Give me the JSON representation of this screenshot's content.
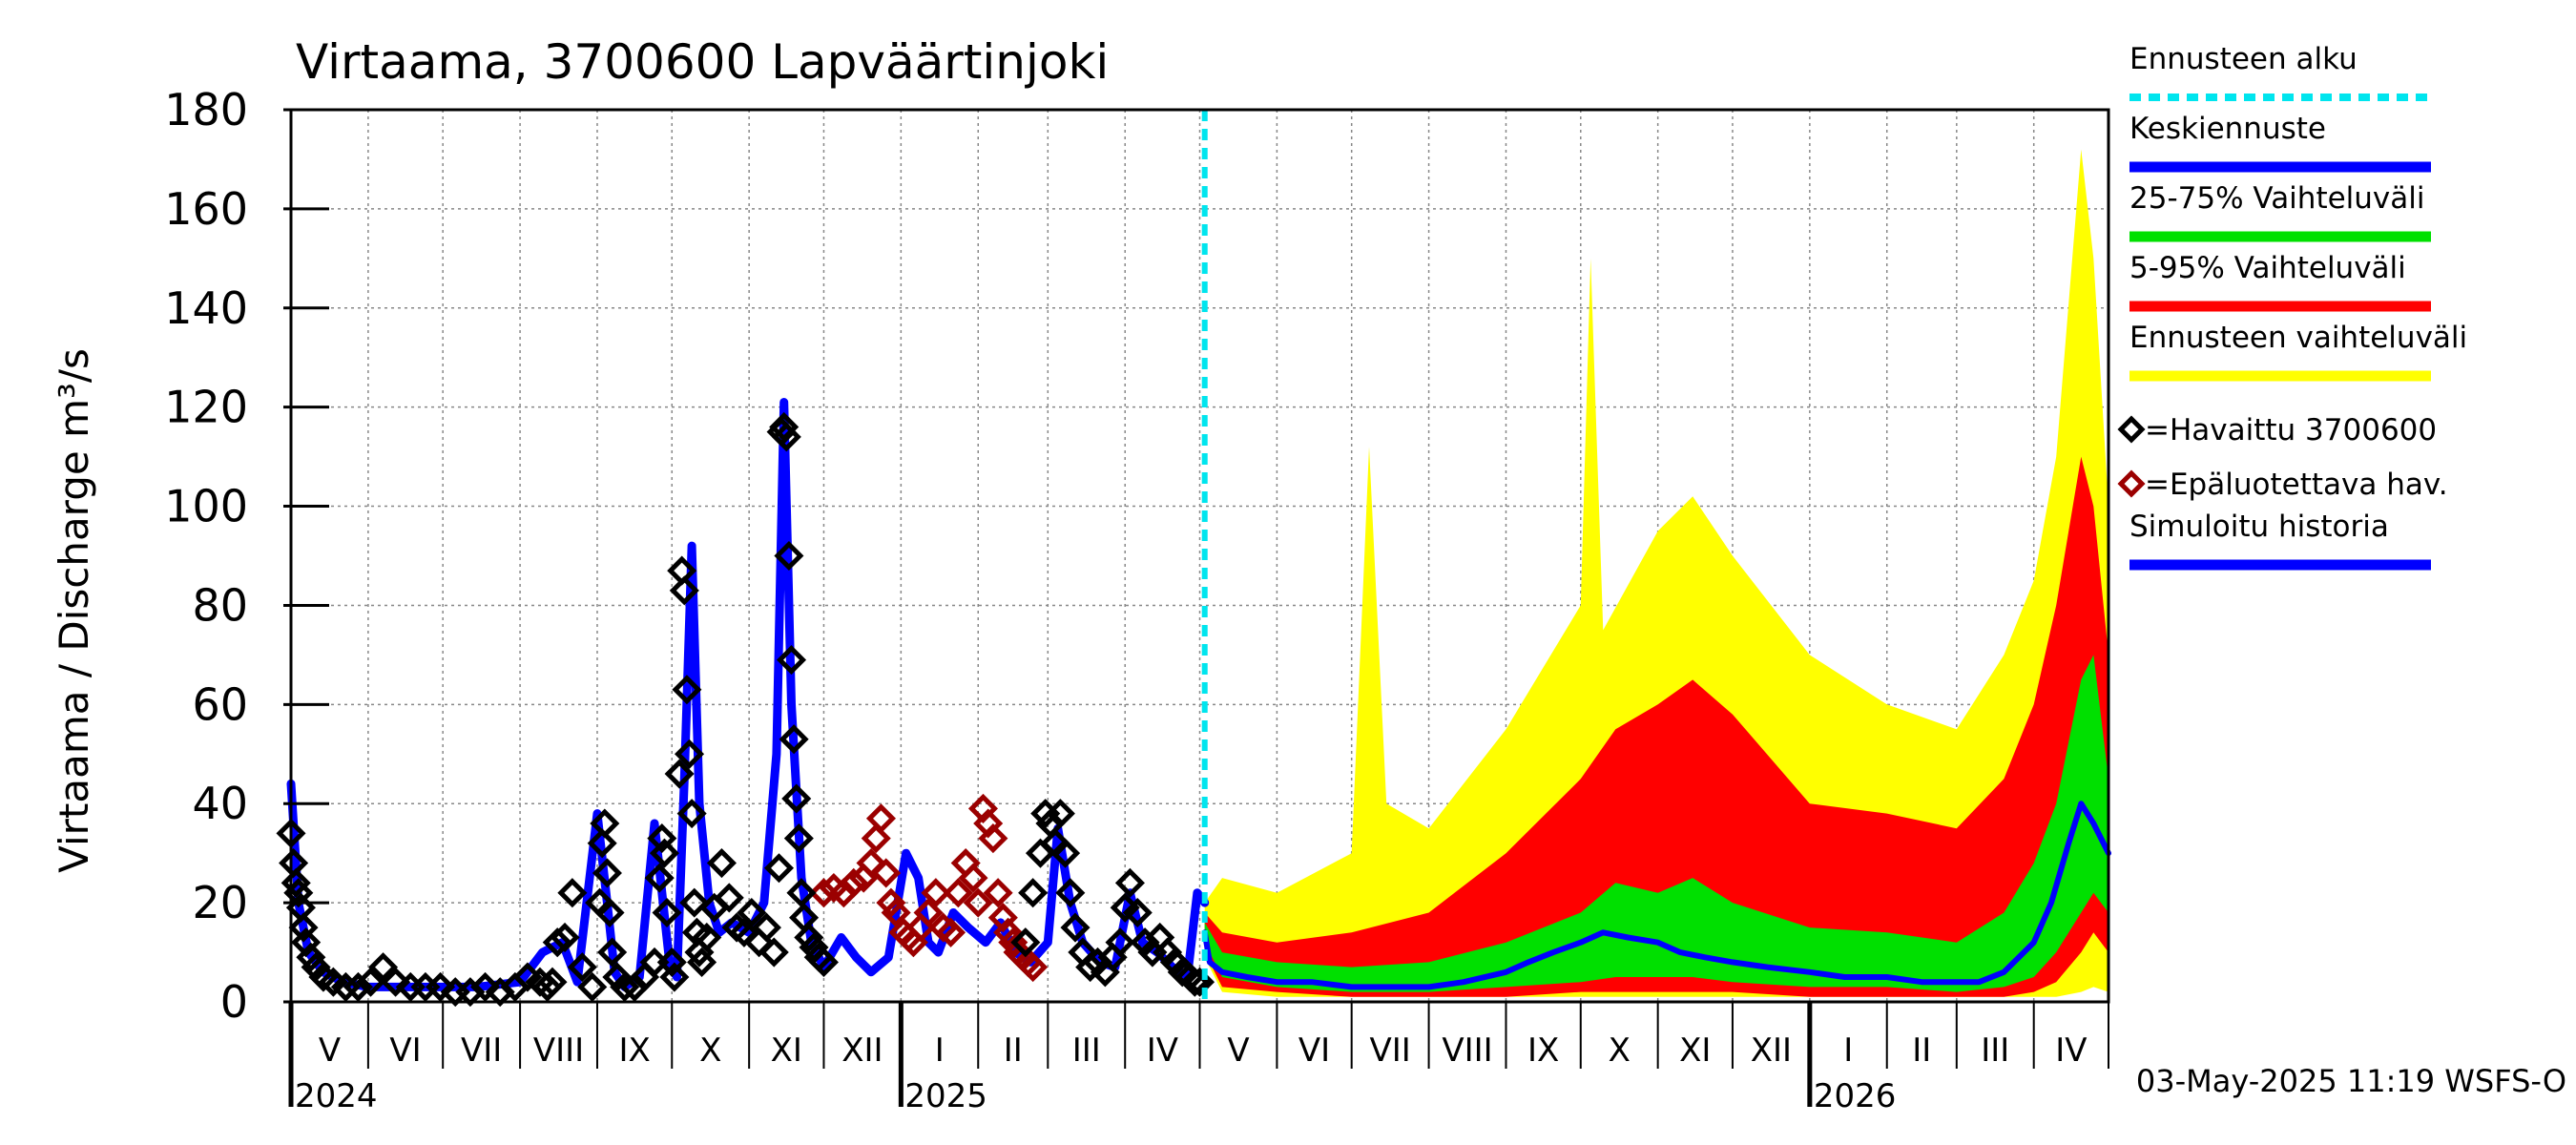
{
  "chart_data": {
    "type": "area",
    "title": "Virtaama, 3700600 Lapväärtinjoki",
    "ylabel": "Virtaama / Discharge    m³/s",
    "ylim": [
      0,
      180
    ],
    "yticks": [
      0,
      20,
      40,
      60,
      80,
      100,
      120,
      140,
      160,
      180
    ],
    "ytick_labels": [
      "0",
      "20",
      "40",
      "60",
      "80",
      "100",
      "120",
      "140",
      "160",
      "180"
    ],
    "xlim": [
      "2024-05-01",
      "2026-05-01"
    ],
    "month_ticks": [
      {
        "label": "V",
        "date": "2024-05-01"
      },
      {
        "label": "VI",
        "date": "2024-06-01"
      },
      {
        "label": "VII",
        "date": "2024-07-01"
      },
      {
        "label": "VIII",
        "date": "2024-08-01"
      },
      {
        "label": "IX",
        "date": "2024-09-01"
      },
      {
        "label": "X",
        "date": "2024-10-01"
      },
      {
        "label": "XI",
        "date": "2024-11-01"
      },
      {
        "label": "XII",
        "date": "2024-12-01"
      },
      {
        "label": "I",
        "date": "2025-01-01"
      },
      {
        "label": "II",
        "date": "2025-02-01"
      },
      {
        "label": "III",
        "date": "2025-03-01"
      },
      {
        "label": "IV",
        "date": "2025-04-01"
      },
      {
        "label": "V",
        "date": "2025-05-01"
      },
      {
        "label": "VI",
        "date": "2025-06-01"
      },
      {
        "label": "VII",
        "date": "2025-07-01"
      },
      {
        "label": "VIII",
        "date": "2025-08-01"
      },
      {
        "label": "IX",
        "date": "2025-09-01"
      },
      {
        "label": "X",
        "date": "2025-10-01"
      },
      {
        "label": "XI",
        "date": "2025-11-01"
      },
      {
        "label": "XII",
        "date": "2025-12-01"
      },
      {
        "label": "I",
        "date": "2026-01-01"
      },
      {
        "label": "II",
        "date": "2026-02-01"
      },
      {
        "label": "III",
        "date": "2026-03-01"
      },
      {
        "label": "IV",
        "date": "2026-04-01"
      },
      {
        "label": "",
        "date": "2026-05-01"
      }
    ],
    "year_labels": [
      {
        "label": "2024",
        "date": "2024-05-01"
      },
      {
        "label": "2025",
        "date": "2025-01-01"
      },
      {
        "label": "2026",
        "date": "2026-01-01"
      }
    ],
    "forecast_start": "2025-05-03",
    "timestamp": "03-May-2025 11:19 WSFS-O",
    "grid": true,
    "legend_position": "right",
    "legend": [
      {
        "label": "Ennusteen alku",
        "color": "#00e5ee",
        "style": "dashed"
      },
      {
        "label": "Keskiennuste",
        "color": "#0000ff",
        "style": "line"
      },
      {
        "label": "25-75% Vaihteluväli",
        "color": "#00e000",
        "style": "line"
      },
      {
        "label": "5-95% Vaihteluväli",
        "color": "#ff0000",
        "style": "line"
      },
      {
        "label": "Ennusteen vaihteluväli",
        "color": "#ffff00",
        "style": "line"
      },
      {
        "label": "=Havaittu 3700600",
        "color": "#000000",
        "style": "diamond"
      },
      {
        "label": "=Epäluotettava hav.",
        "color": "#9b0000",
        "style": "diamond"
      },
      {
        "label": "Simuloitu historia",
        "color": "#0000ff",
        "style": "line"
      }
    ],
    "series": [
      {
        "name": "Simuloitu historia",
        "color": "#0000ff",
        "x": [
          "2024-05-01",
          "2024-05-04",
          "2024-05-08",
          "2024-05-14",
          "2024-05-22",
          "2024-06-01",
          "2024-06-15",
          "2024-07-01",
          "2024-07-15",
          "2024-08-01",
          "2024-08-10",
          "2024-08-18",
          "2024-08-24",
          "2024-09-01",
          "2024-09-05",
          "2024-09-08",
          "2024-09-12",
          "2024-09-18",
          "2024-09-24",
          "2024-09-30",
          "2024-10-03",
          "2024-10-06",
          "2024-10-09",
          "2024-10-12",
          "2024-10-16",
          "2024-10-20",
          "2024-10-25",
          "2024-11-01",
          "2024-11-07",
          "2024-11-12",
          "2024-11-15",
          "2024-11-18",
          "2024-11-22",
          "2024-11-26",
          "2024-12-01",
          "2024-12-08",
          "2024-12-14",
          "2024-12-20",
          "2024-12-27",
          "2025-01-03",
          "2025-01-08",
          "2025-01-12",
          "2025-01-16",
          "2025-01-22",
          "2025-01-28",
          "2025-02-04",
          "2025-02-10",
          "2025-02-16",
          "2025-02-22",
          "2025-03-01",
          "2025-03-05",
          "2025-03-10",
          "2025-03-15",
          "2025-03-22",
          "2025-03-28",
          "2025-04-03",
          "2025-04-08",
          "2025-04-14",
          "2025-04-20",
          "2025-04-26",
          "2025-04-30",
          "2025-05-03"
        ],
        "y": [
          44,
          20,
          10,
          6,
          4,
          3,
          3,
          3,
          3,
          4,
          10,
          12,
          4,
          38,
          20,
          6,
          3,
          5,
          36,
          8,
          5,
          45,
          92,
          40,
          20,
          14,
          16,
          14,
          20,
          50,
          121,
          60,
          25,
          12,
          7,
          13,
          9,
          6,
          9,
          30,
          25,
          12,
          10,
          18,
          15,
          12,
          16,
          10,
          8,
          12,
          35,
          20,
          12,
          8,
          7,
          22,
          12,
          10,
          7,
          5,
          22,
          20
        ]
      },
      {
        "name": "Keskiennuste",
        "color": "#0000ff",
        "x": [
          "2025-05-03",
          "2025-05-05",
          "2025-05-10",
          "2025-05-20",
          "2025-06-01",
          "2025-06-15",
          "2025-07-01",
          "2025-07-15",
          "2025-08-01",
          "2025-08-15",
          "2025-09-01",
          "2025-09-10",
          "2025-09-20",
          "2025-10-01",
          "2025-10-10",
          "2025-10-20",
          "2025-11-01",
          "2025-11-10",
          "2025-11-20",
          "2025-12-01",
          "2025-12-15",
          "2026-01-01",
          "2026-01-15",
          "2026-02-01",
          "2026-02-15",
          "2026-03-01",
          "2026-03-10",
          "2026-03-20",
          "2026-04-01",
          "2026-04-08",
          "2026-04-15",
          "2026-04-20",
          "2026-04-25",
          "2026-05-01"
        ],
        "y": [
          14,
          8,
          6,
          5,
          4,
          4,
          3,
          3,
          3,
          4,
          6,
          8,
          10,
          12,
          14,
          13,
          12,
          10,
          9,
          8,
          7,
          6,
          5,
          5,
          4,
          4,
          4,
          6,
          12,
          20,
          32,
          40,
          36,
          30
        ]
      },
      {
        "name": "25-75% Vaihteluväli",
        "color": "#00e000",
        "x": [
          "2025-05-03",
          "2025-05-10",
          "2025-06-01",
          "2025-07-01",
          "2025-08-01",
          "2025-09-01",
          "2025-10-01",
          "2025-10-15",
          "2025-11-01",
          "2025-11-15",
          "2025-12-01",
          "2026-01-01",
          "2026-02-01",
          "2026-03-01",
          "2026-03-20",
          "2026-04-01",
          "2026-04-10",
          "2026-04-20",
          "2026-04-25",
          "2026-05-01"
        ],
        "lower": [
          12,
          5,
          3,
          2,
          2,
          3,
          4,
          5,
          5,
          5,
          4,
          3,
          3,
          2,
          3,
          5,
          10,
          18,
          22,
          18
        ],
        "upper": [
          16,
          10,
          8,
          7,
          8,
          12,
          18,
          24,
          22,
          25,
          20,
          15,
          14,
          12,
          18,
          28,
          40,
          65,
          70,
          45
        ]
      },
      {
        "name": "5-95% Vaihteluväli",
        "color": "#ff0000",
        "x": [
          "2025-05-03",
          "2025-05-10",
          "2025-06-01",
          "2025-07-01",
          "2025-08-01",
          "2025-09-01",
          "2025-10-01",
          "2025-10-15",
          "2025-11-01",
          "2025-11-15",
          "2025-12-01",
          "2026-01-01",
          "2026-02-01",
          "2026-03-01",
          "2026-03-20",
          "2026-04-01",
          "2026-04-10",
          "2026-04-20",
          "2026-04-25",
          "2026-05-01"
        ],
        "lower": [
          10,
          3,
          2,
          1,
          1,
          1,
          2,
          2,
          2,
          2,
          2,
          1,
          1,
          1,
          1,
          2,
          4,
          10,
          14,
          10
        ],
        "upper": [
          18,
          14,
          12,
          14,
          18,
          30,
          45,
          55,
          60,
          65,
          58,
          40,
          38,
          35,
          45,
          60,
          80,
          110,
          100,
          70
        ]
      },
      {
        "name": "Ennusteen vaihteluväli",
        "color": "#ffff00",
        "x": [
          "2025-05-03",
          "2025-05-10",
          "2025-06-01",
          "2025-07-01",
          "2025-07-08",
          "2025-07-15",
          "2025-08-01",
          "2025-09-01",
          "2025-10-01",
          "2025-10-05",
          "2025-10-10",
          "2025-11-01",
          "2025-11-15",
          "2025-12-01",
          "2026-01-01",
          "2026-02-01",
          "2026-03-01",
          "2026-03-20",
          "2026-04-01",
          "2026-04-10",
          "2026-04-20",
          "2026-04-25",
          "2026-05-01"
        ],
        "lower": [
          9,
          2,
          1,
          1,
          1,
          1,
          1,
          1,
          1,
          1,
          1,
          1,
          1,
          1,
          1,
          1,
          1,
          1,
          1,
          1,
          2,
          3,
          2
        ],
        "upper": [
          20,
          25,
          22,
          30,
          112,
          40,
          35,
          55,
          80,
          150,
          75,
          95,
          102,
          90,
          70,
          60,
          55,
          70,
          85,
          110,
          172,
          150,
          100
        ]
      }
    ],
    "observed": {
      "name": "Havaittu 3700600",
      "color": "#000000",
      "x": [
        "2024-05-01",
        "2024-05-02",
        "2024-05-03",
        "2024-05-04",
        "2024-05-05",
        "2024-05-06",
        "2024-05-07",
        "2024-05-09",
        "2024-05-11",
        "2024-05-14",
        "2024-05-18",
        "2024-05-23",
        "2024-05-28",
        "2024-06-02",
        "2024-06-07",
        "2024-06-12",
        "2024-06-18",
        "2024-06-24",
        "2024-06-30",
        "2024-07-06",
        "2024-07-12",
        "2024-07-18",
        "2024-07-24",
        "2024-07-30",
        "2024-08-04",
        "2024-08-09",
        "2024-08-12",
        "2024-08-14",
        "2024-08-16",
        "2024-08-19",
        "2024-08-22",
        "2024-08-26",
        "2024-08-30",
        "2024-09-02",
        "2024-09-03",
        "2024-09-04",
        "2024-09-05",
        "2024-09-06",
        "2024-09-07",
        "2024-09-09",
        "2024-09-12",
        "2024-09-16",
        "2024-09-20",
        "2024-09-24",
        "2024-09-26",
        "2024-09-27",
        "2024-09-28",
        "2024-09-29",
        "2024-10-01",
        "2024-10-02",
        "2024-10-04",
        "2024-10-05",
        "2024-10-06",
        "2024-10-07",
        "2024-10-08",
        "2024-10-09",
        "2024-10-10",
        "2024-10-11",
        "2024-10-12",
        "2024-10-13",
        "2024-10-15",
        "2024-10-18",
        "2024-10-21",
        "2024-10-24",
        "2024-10-27",
        "2024-10-30",
        "2024-11-02",
        "2024-11-05",
        "2024-11-08",
        "2024-11-11",
        "2024-11-13",
        "2024-11-14",
        "2024-11-15",
        "2024-11-16",
        "2024-11-17",
        "2024-11-18",
        "2024-11-19",
        "2024-11-20",
        "2024-11-21",
        "2024-11-22",
        "2024-11-23",
        "2024-11-25",
        "2024-11-27",
        "2024-11-29",
        "2024-12-01",
        "2025-02-20",
        "2025-02-23",
        "2025-02-26",
        "2025-02-28",
        "2025-03-02",
        "2025-03-04",
        "2025-03-06",
        "2025-03-08",
        "2025-03-10",
        "2025-03-12",
        "2025-03-15",
        "2025-03-18",
        "2025-03-21",
        "2025-03-24",
        "2025-03-27",
        "2025-03-30",
        "2025-04-01",
        "2025-04-03",
        "2025-04-06",
        "2025-04-09",
        "2025-04-12",
        "2025-04-15",
        "2025-04-18",
        "2025-04-21",
        "2025-04-24",
        "2025-04-27",
        "2025-04-29",
        "2025-05-01"
      ],
      "y": [
        34,
        28,
        24,
        22,
        19,
        15,
        12,
        9,
        7,
        5,
        4,
        3,
        3,
        4,
        7,
        4,
        3,
        3,
        3,
        2,
        2,
        3,
        2,
        3,
        5,
        4,
        3,
        4,
        12,
        13,
        22,
        7,
        3,
        20,
        32,
        36,
        26,
        18,
        10,
        5,
        3,
        3,
        5,
        8,
        25,
        33,
        30,
        18,
        8,
        5,
        46,
        87,
        83,
        63,
        50,
        38,
        20,
        14,
        10,
        8,
        13,
        19,
        28,
        21,
        15,
        14,
        18,
        12,
        15,
        10,
        27,
        115,
        116,
        114,
        90,
        69,
        53,
        41,
        33,
        22,
        17,
        13,
        11,
        9,
        8,
        12,
        22,
        30,
        38,
        36,
        32,
        38,
        30,
        22,
        15,
        10,
        7,
        8,
        6,
        9,
        12,
        19,
        24,
        18,
        12,
        10,
        13,
        10,
        8,
        6,
        5,
        4,
        4
      ]
    },
    "unreliable": {
      "name": "Epäluotettava hav.",
      "color": "#9b0000",
      "x": [
        "2024-12-01",
        "2024-12-05",
        "2024-12-09",
        "2024-12-13",
        "2024-12-17",
        "2024-12-20",
        "2024-12-22",
        "2024-12-24",
        "2024-12-26",
        "2024-12-28",
        "2024-12-30",
        "2025-01-02",
        "2025-01-04",
        "2025-01-06",
        "2025-01-09",
        "2025-01-12",
        "2025-01-15",
        "2025-01-18",
        "2025-01-21",
        "2025-01-24",
        "2025-01-27",
        "2025-01-30",
        "2025-02-01",
        "2025-02-03",
        "2025-02-05",
        "2025-02-07",
        "2025-02-09",
        "2025-02-11",
        "2025-02-13",
        "2025-02-15",
        "2025-02-17",
        "2025-02-19",
        "2025-02-21",
        "2025-02-23"
      ],
      "y": [
        22,
        23,
        22,
        24,
        25,
        28,
        33,
        37,
        26,
        20,
        18,
        14,
        13,
        12,
        15,
        18,
        22,
        15,
        14,
        22,
        28,
        25,
        20,
        39,
        36,
        33,
        22,
        17,
        14,
        12,
        10,
        9,
        8,
        7
      ]
    }
  }
}
